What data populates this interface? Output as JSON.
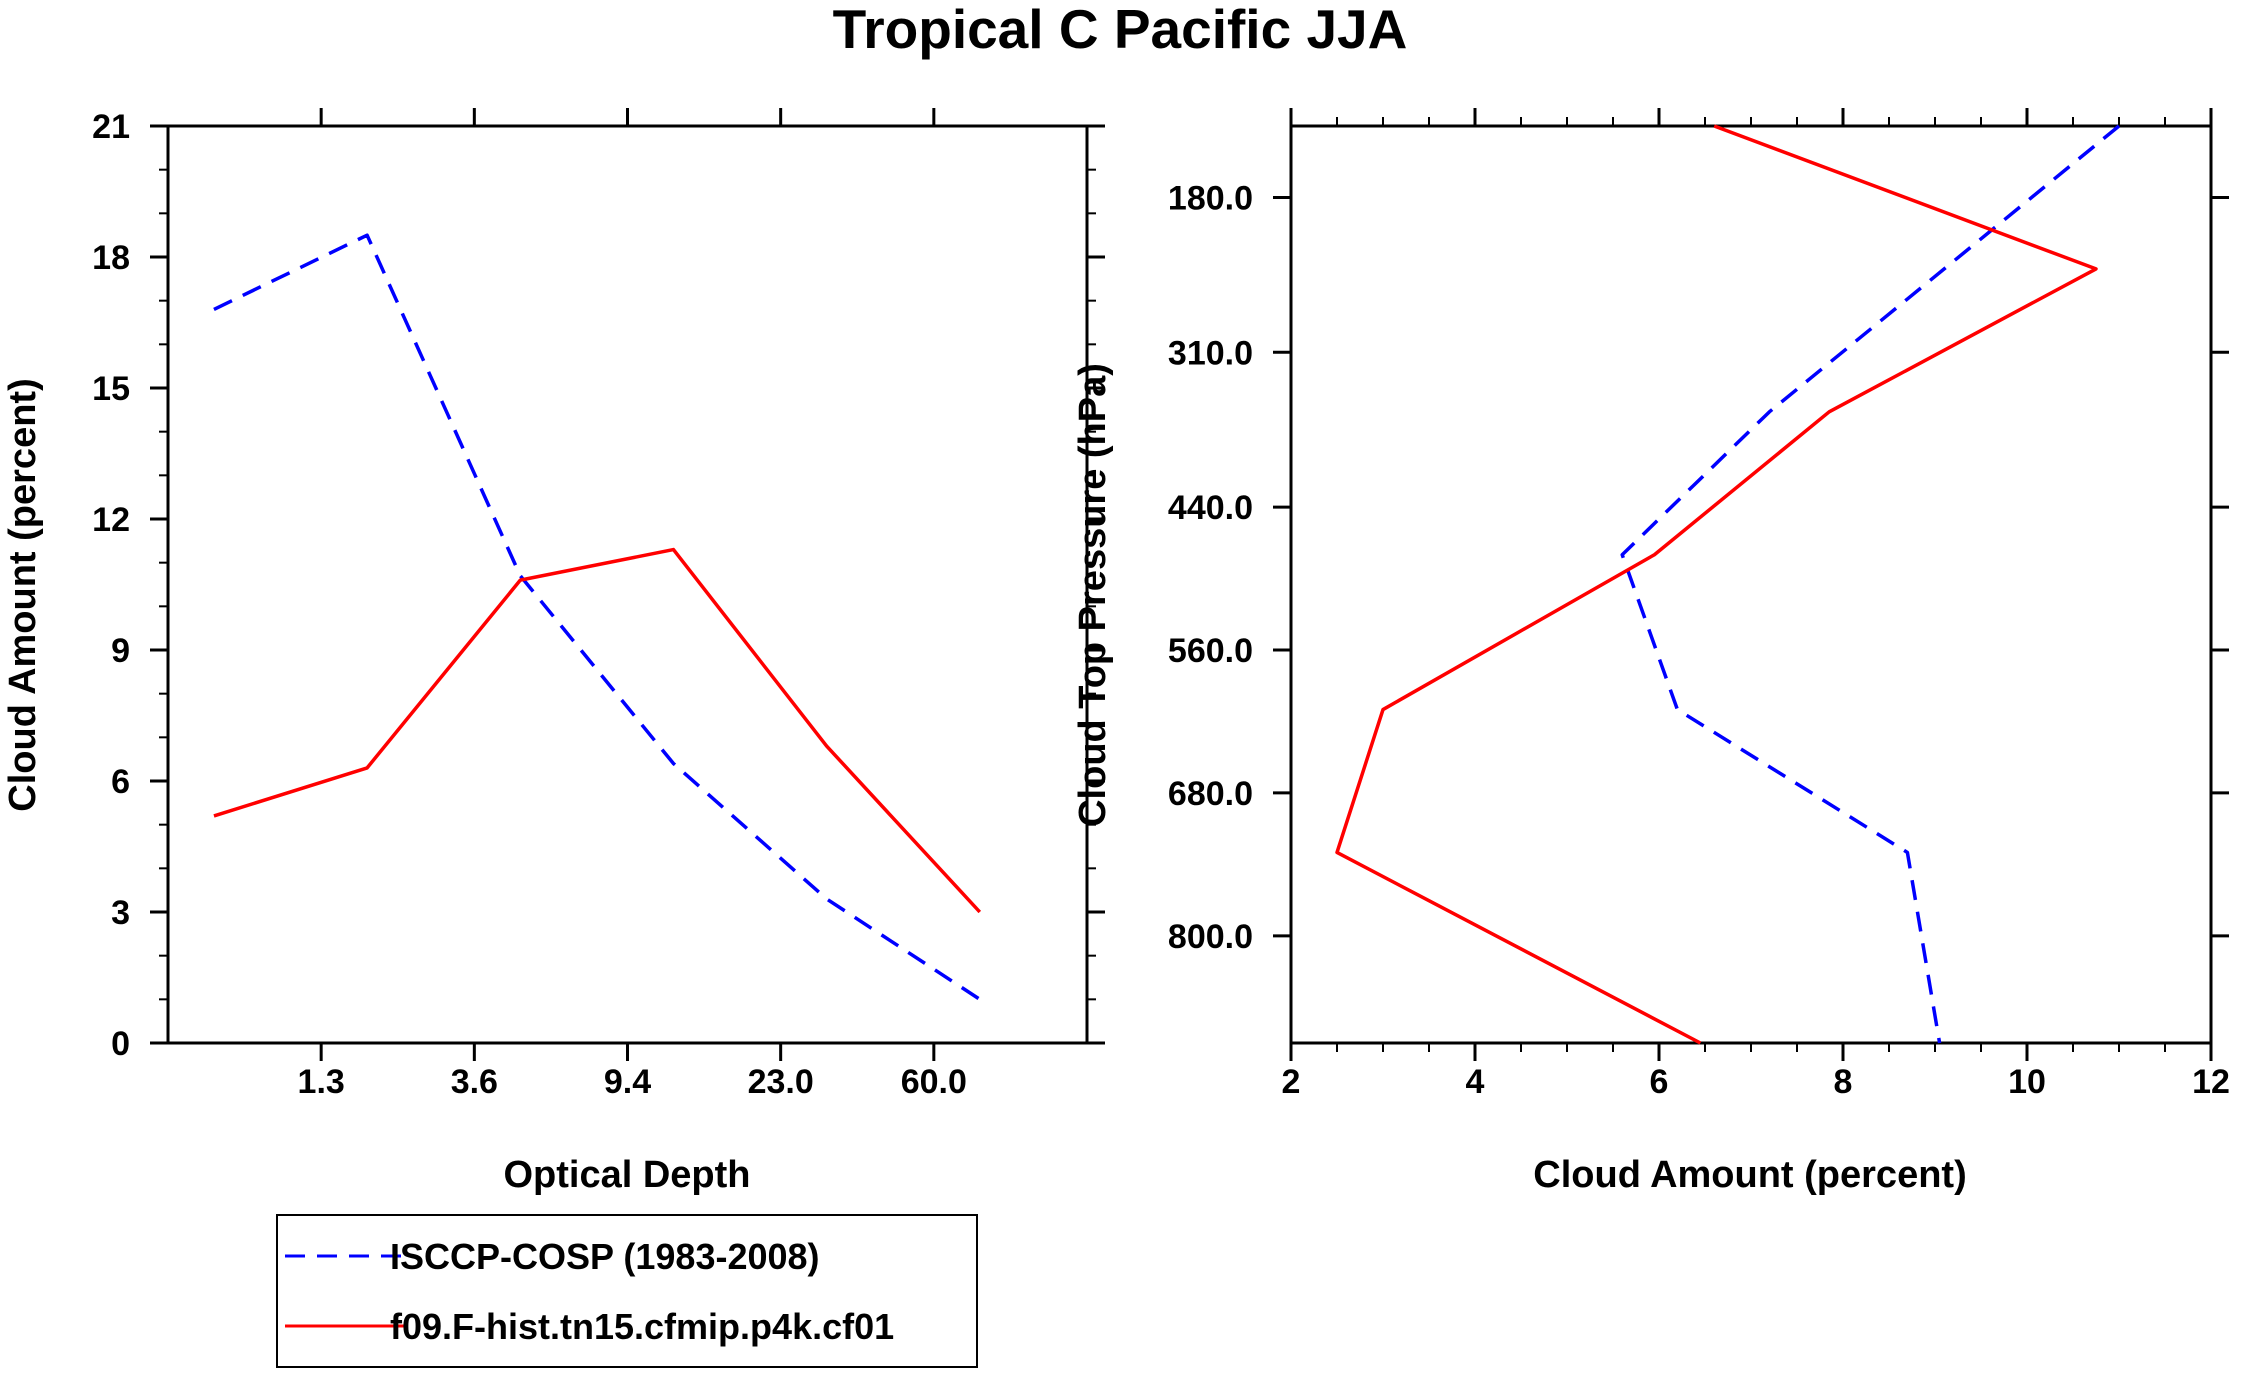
{
  "figure": {
    "title": "Tropical C Pacific JJA"
  },
  "chart_data": [
    {
      "type": "line",
      "xlabel": "Optical Depth",
      "ylabel": "Cloud Amount (percent)",
      "x_scale": "categorical",
      "x_tick_labels": [
        "1.3",
        "3.6",
        "9.4",
        "23.0",
        "60.0"
      ],
      "y_ticks": [
        0,
        3,
        6,
        9,
        12,
        15,
        18,
        21
      ],
      "ylim": [
        0,
        21
      ],
      "x": [
        0.3,
        1.3,
        2.3,
        3.3,
        4.3,
        5.3
      ],
      "series": [
        {
          "name": "ISCCP-COSP (1983-2008)",
          "color": "#0000ff",
          "dash": "dashed",
          "values": [
            16.8,
            18.5,
            10.7,
            6.4,
            3.3,
            1.0
          ]
        },
        {
          "name": "f09.F-hist.tn15.cfmip.p4k.cf01",
          "color": "#ff0000",
          "dash": "solid",
          "values": [
            5.2,
            6.3,
            10.6,
            11.3,
            6.8,
            3.0
          ]
        }
      ]
    },
    {
      "type": "line",
      "xlabel": "Cloud Amount (percent)",
      "ylabel": "Cloud Top Pressure (hPa)",
      "xlim": [
        2,
        12
      ],
      "x_ticks": [
        2,
        4,
        6,
        8,
        10,
        12
      ],
      "ylim": [
        120,
        890
      ],
      "y_inverted": true,
      "y_ticks": [
        180.0,
        310.0,
        440.0,
        560.0,
        680.0,
        800.0
      ],
      "y_tick_labels": [
        "180.0",
        "310.0",
        "440.0",
        "560.0",
        "680.0",
        "800.0"
      ],
      "series": [
        {
          "name": "ISCCP-COSP (1983-2008)",
          "color": "#0000ff",
          "dash": "dashed",
          "pressure": [
            120,
            360,
            480,
            610,
            730,
            890
          ],
          "values": [
            11.0,
            7.2,
            5.6,
            6.2,
            8.7,
            9.05
          ]
        },
        {
          "name": "f09.F-hist.tn15.cfmip.p4k.cf01",
          "color": "#ff0000",
          "dash": "solid",
          "pressure": [
            120,
            240,
            360,
            480,
            610,
            730,
            890
          ],
          "values": [
            6.6,
            10.75,
            7.85,
            5.95,
            3.0,
            2.5,
            6.45
          ]
        }
      ]
    }
  ],
  "legend": {
    "entries": [
      "ISCCP-COSP (1983-2008)",
      "f09.F-hist.tn15.cfmip.p4k.cf01"
    ]
  }
}
